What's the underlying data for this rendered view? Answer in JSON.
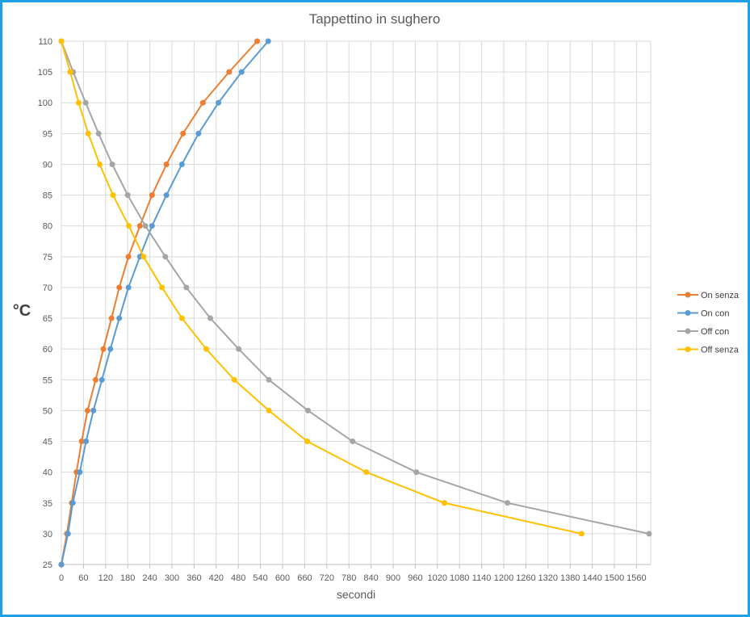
{
  "chart_data": {
    "type": "scatter",
    "title": "Tappettino in sughero",
    "xlabel": "secondi",
    "ylabel": "°C",
    "xlim": [
      0,
      1600
    ],
    "ylim": [
      25,
      110
    ],
    "xticks": [
      "0",
      "60",
      "120",
      "180",
      "240",
      "300",
      "360",
      "420",
      "480",
      "540",
      "600",
      "660",
      "720",
      "780",
      "840",
      "900",
      "960",
      "1020",
      "1080",
      "1140",
      "1200",
      "1260",
      "1320",
      "1380",
      "1440",
      "1500",
      "1560"
    ],
    "yticks": [
      "25",
      "30",
      "35",
      "40",
      "45",
      "50",
      "55",
      "60",
      "65",
      "70",
      "75",
      "80",
      "85",
      "90",
      "95",
      "100",
      "105",
      "110"
    ],
    "grid": true,
    "legend_position": "right",
    "series": [
      {
        "name": "On senza",
        "color": "#ED7D31",
        "points": [
          [
            0,
            25
          ],
          [
            15,
            30
          ],
          [
            28,
            35
          ],
          [
            41,
            40
          ],
          [
            55,
            45
          ],
          [
            71,
            50
          ],
          [
            93,
            55
          ],
          [
            114,
            60
          ],
          [
            136,
            65
          ],
          [
            157,
            70
          ],
          [
            182,
            75
          ],
          [
            213,
            80
          ],
          [
            246,
            85
          ],
          [
            285,
            90
          ],
          [
            330,
            95
          ],
          [
            384,
            100
          ],
          [
            455,
            105
          ],
          [
            531,
            110
          ]
        ]
      },
      {
        "name": "On con",
        "color": "#5B9BD5",
        "points": [
          [
            0,
            25
          ],
          [
            18,
            30
          ],
          [
            31,
            35
          ],
          [
            50,
            40
          ],
          [
            67,
            45
          ],
          [
            87,
            50
          ],
          [
            110,
            55
          ],
          [
            133,
            60
          ],
          [
            157,
            65
          ],
          [
            182,
            70
          ],
          [
            213,
            75
          ],
          [
            246,
            80
          ],
          [
            285,
            85
          ],
          [
            327,
            90
          ],
          [
            372,
            95
          ],
          [
            426,
            100
          ],
          [
            489,
            105
          ],
          [
            561,
            110
          ]
        ]
      },
      {
        "name": "Off con",
        "color": "#A5A5A5",
        "points": [
          [
            0,
            110
          ],
          [
            32,
            105
          ],
          [
            66,
            100
          ],
          [
            101,
            95
          ],
          [
            138,
            90
          ],
          [
            180,
            85
          ],
          [
            228,
            80
          ],
          [
            282,
            75
          ],
          [
            339,
            70
          ],
          [
            404,
            65
          ],
          [
            481,
            60
          ],
          [
            563,
            55
          ],
          [
            669,
            50
          ],
          [
            790,
            45
          ],
          [
            963,
            40
          ],
          [
            1210,
            35
          ],
          [
            1594,
            30
          ]
        ]
      },
      {
        "name": "Off senza",
        "color": "#FFC000",
        "points": [
          [
            0,
            110
          ],
          [
            24,
            105
          ],
          [
            47,
            100
          ],
          [
            73,
            95
          ],
          [
            104,
            90
          ],
          [
            140,
            85
          ],
          [
            183,
            80
          ],
          [
            223,
            75
          ],
          [
            273,
            70
          ],
          [
            327,
            65
          ],
          [
            393,
            60
          ],
          [
            469,
            55
          ],
          [
            563,
            50
          ],
          [
            667,
            45
          ],
          [
            827,
            40
          ],
          [
            1039,
            35
          ],
          [
            1411,
            30
          ]
        ]
      }
    ]
  }
}
